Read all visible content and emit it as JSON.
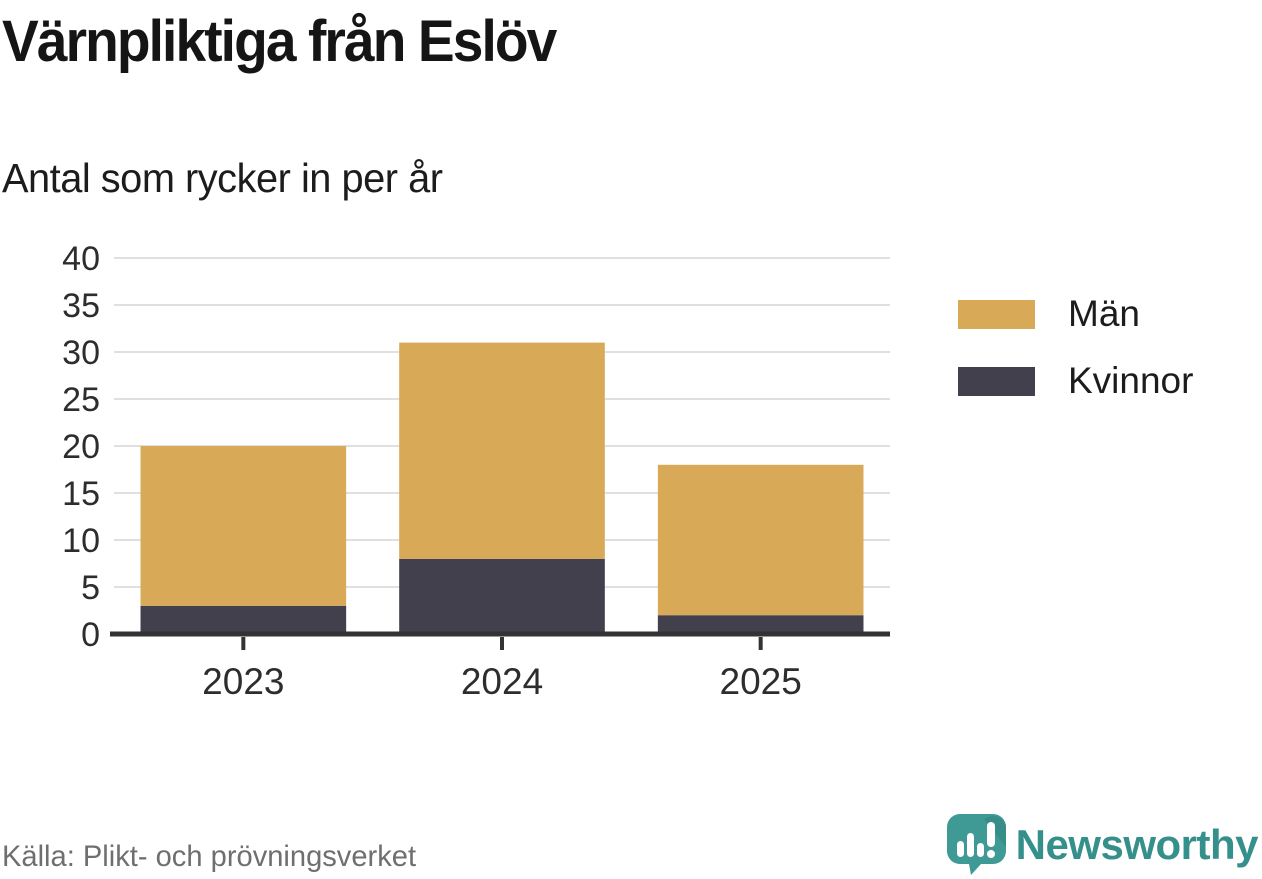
{
  "title": "Värnpliktiga från Eslöv",
  "subtitle": "Antal som rycker in per år",
  "source": "Källa: Plikt- och prövningsverket",
  "brand": {
    "name": "Newsworthy",
    "icon": "newsworthy-speech-bubble-chart-icon",
    "teal": "#3f9a95",
    "teal_dark": "#35908c"
  },
  "colors": {
    "men": "#d8aa58",
    "women": "#43404e",
    "gridline": "#e0e0e0",
    "axis": "#333333",
    "tick_text": "#2d2d2d"
  },
  "legend": {
    "items": [
      {
        "label": "Män",
        "color": "#d8aa58"
      },
      {
        "label": "Kvinnor",
        "color": "#43404e"
      }
    ]
  },
  "chart_data": {
    "type": "bar",
    "stacked": true,
    "title": "Värnpliktiga från Eslöv",
    "subtitle": "Antal som rycker in per år",
    "categories": [
      "2023",
      "2024",
      "2025"
    ],
    "series": [
      {
        "name": "Kvinnor",
        "color": "#43404e",
        "values": [
          3,
          8,
          2
        ]
      },
      {
        "name": "Män",
        "color": "#d8aa58",
        "values": [
          17,
          23,
          16
        ]
      }
    ],
    "totals": [
      20,
      31,
      18
    ],
    "xlabel": "",
    "ylabel": "",
    "ylim": [
      0,
      40
    ],
    "ytick_step": 5,
    "grid": true,
    "legend_position": "right",
    "legend_order": [
      "Män",
      "Kvinnor"
    ]
  }
}
